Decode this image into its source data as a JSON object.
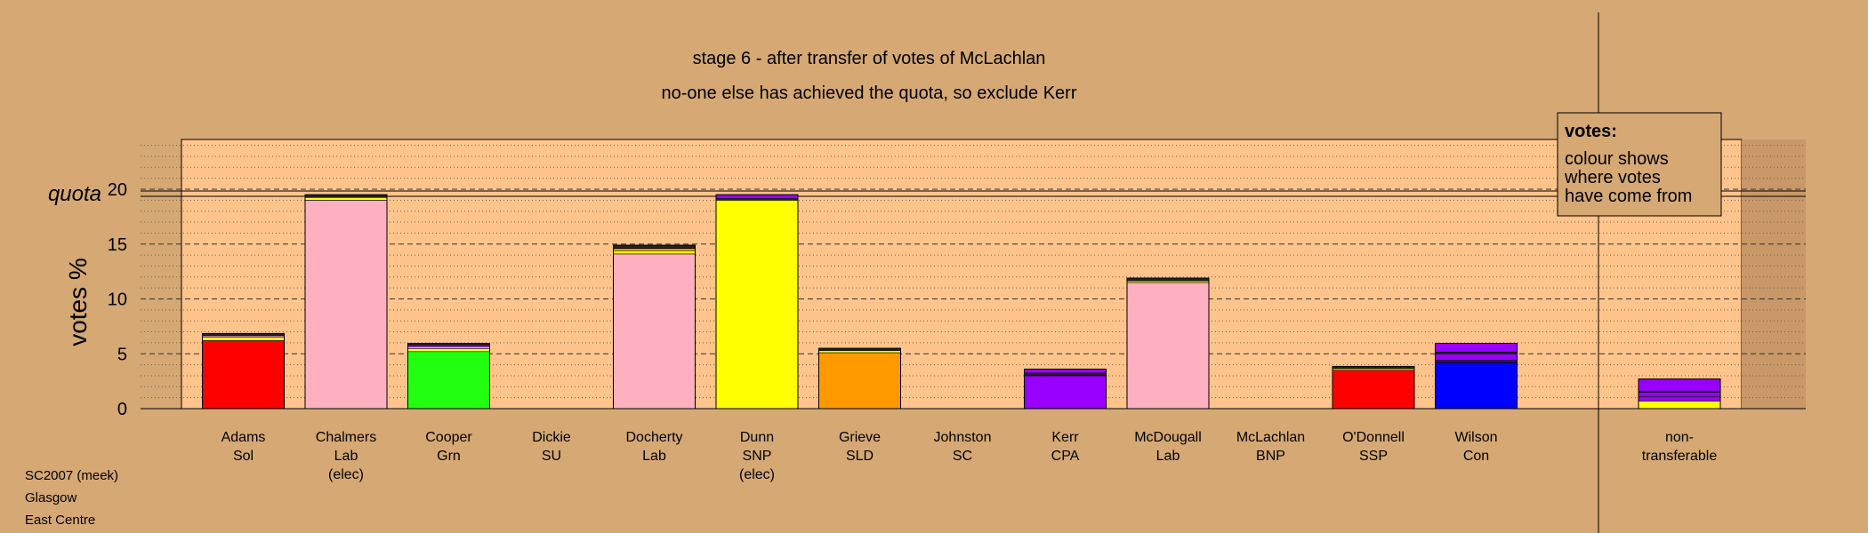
{
  "chart_data": {
    "type": "bar",
    "stacked": true,
    "title": "stage 6 - after transfer of votes of McLachlan",
    "subtitle": "no-one else has achieved the quota, so exclude Kerr",
    "ylabel": "votes %",
    "quota_label": "quota",
    "quota": 19.6,
    "ylim": [
      0,
      24.7
    ],
    "yticks": [
      0,
      5,
      10,
      15,
      20
    ],
    "grid": true,
    "legend": {
      "title": "votes:",
      "lines": [
        "colour shows",
        "where votes",
        "have come from"
      ],
      "placement": "top-right"
    },
    "categories": [
      {
        "name": "Adams",
        "party": "Sol",
        "note": "",
        "segments": [
          {
            "value": 6.2,
            "color": "#ff0000"
          },
          {
            "value": 0.3,
            "color": "#ffff00"
          },
          {
            "value": 0.15,
            "color": "#ffb0c0"
          },
          {
            "value": 0.2,
            "color": "#222222"
          }
        ]
      },
      {
        "name": "Chalmers",
        "party": "Lab",
        "note": "(elec)",
        "segments": [
          {
            "value": 19.0,
            "color": "#ffb0c0"
          },
          {
            "value": 0.25,
            "color": "#ffff00"
          },
          {
            "value": 0.25,
            "color": "#222222"
          }
        ]
      },
      {
        "name": "Cooper",
        "party": "Grn",
        "note": "",
        "segments": [
          {
            "value": 5.2,
            "color": "#22ff11"
          },
          {
            "value": 0.25,
            "color": "#ffff00"
          },
          {
            "value": 0.2,
            "color": "#ffb0c0"
          },
          {
            "value": 0.15,
            "color": "#9900ff"
          },
          {
            "value": 0.15,
            "color": "#222222"
          }
        ]
      },
      {
        "name": "Dickie",
        "party": "SU",
        "note": "",
        "segments": []
      },
      {
        "name": "Docherty",
        "party": "Lab",
        "note": "",
        "segments": [
          {
            "value": 14.1,
            "color": "#ffb0c0"
          },
          {
            "value": 0.3,
            "color": "#ffff00"
          },
          {
            "value": 0.2,
            "color": "#ff9900"
          },
          {
            "value": 0.3,
            "color": "#222222"
          }
        ]
      },
      {
        "name": "Dunn",
        "party": "SNP",
        "note": "(elec)",
        "segments": [
          {
            "value": 19.0,
            "color": "#ffff00"
          },
          {
            "value": 0.15,
            "color": "#222222"
          },
          {
            "value": 0.35,
            "color": "#9900ff"
          }
        ]
      },
      {
        "name": "Grieve",
        "party": "SLD",
        "note": "",
        "segments": [
          {
            "value": 5.1,
            "color": "#ff9900"
          },
          {
            "value": 0.2,
            "color": "#ffff00"
          },
          {
            "value": 0.2,
            "color": "#222222"
          }
        ]
      },
      {
        "name": "Johnston",
        "party": "SC",
        "note": "",
        "segments": []
      },
      {
        "name": "Kerr",
        "party": "CPA",
        "note": "",
        "segments": [
          {
            "value": 3.0,
            "color": "#9900ff"
          },
          {
            "value": 0.25,
            "color": "#222222"
          },
          {
            "value": 0.35,
            "color": "#9900ff"
          }
        ]
      },
      {
        "name": "McDougall",
        "party": "Lab",
        "note": "",
        "segments": [
          {
            "value": 11.5,
            "color": "#ffb0c0"
          },
          {
            "value": 0.15,
            "color": "#ffff00"
          },
          {
            "value": 0.25,
            "color": "#222222"
          }
        ]
      },
      {
        "name": "McLachlan",
        "party": "BNP",
        "note": "",
        "segments": []
      },
      {
        "name": "O'Donnell",
        "party": "SSP",
        "note": "",
        "segments": [
          {
            "value": 3.5,
            "color": "#ff0000"
          },
          {
            "value": 0.15,
            "color": "#ffff00"
          },
          {
            "value": 0.2,
            "color": "#222222"
          }
        ]
      },
      {
        "name": "Wilson",
        "party": "Con",
        "note": "",
        "segments": [
          {
            "value": 4.2,
            "color": "#0000ff"
          },
          {
            "value": 0.2,
            "color": "#222222"
          },
          {
            "value": 0.6,
            "color": "#9900ff"
          },
          {
            "value": 0.15,
            "color": "#222222"
          },
          {
            "value": 0.8,
            "color": "#9900ff"
          }
        ]
      }
    ],
    "nontransferable": {
      "name": "non-",
      "party": "transferable",
      "segments": [
        {
          "value": 0.7,
          "color": "#ffff00"
        },
        {
          "value": 0.3,
          "color": "#9900ff"
        },
        {
          "value": 0.1,
          "color": "#ffb0c0"
        },
        {
          "value": 0.4,
          "color": "#9900ff"
        },
        {
          "value": 0.1,
          "color": "#222222"
        },
        {
          "value": 1.1,
          "color": "#9900ff"
        }
      ]
    }
  },
  "footer": {
    "line1": "SC2007 (meek)",
    "line2": "Glasgow",
    "line3": "East Centre"
  }
}
